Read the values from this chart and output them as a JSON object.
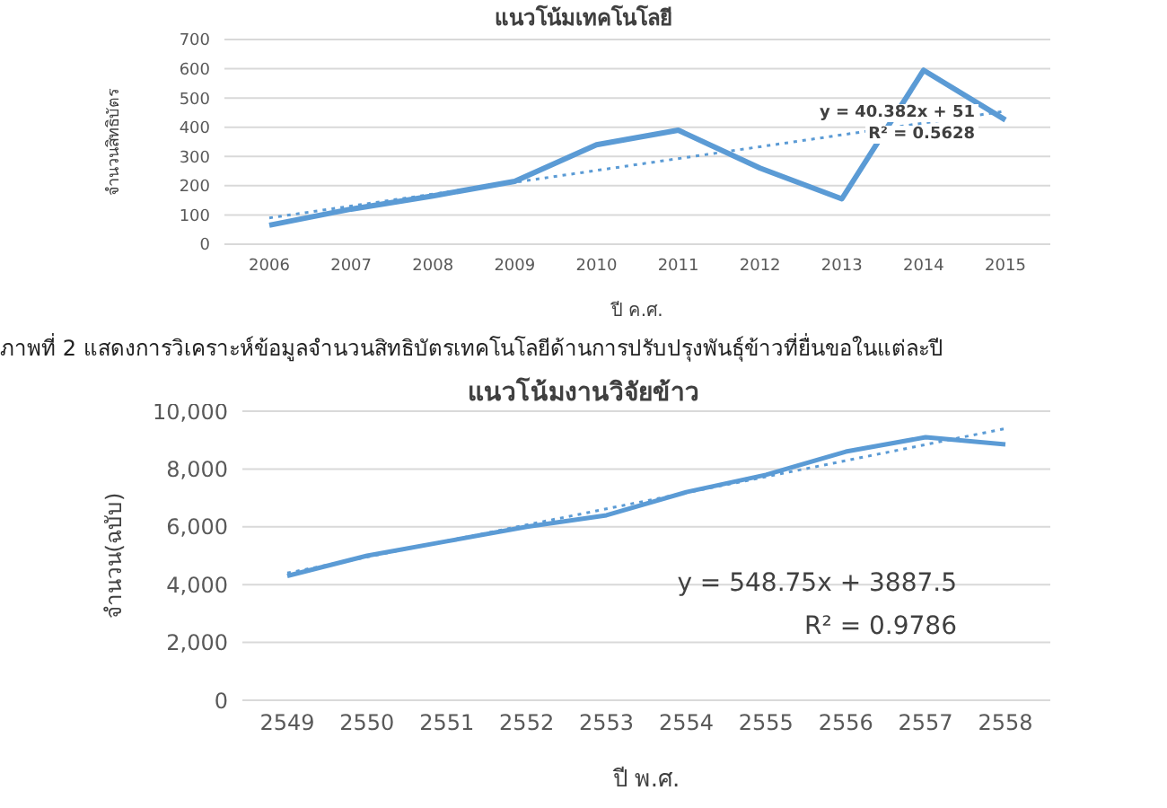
{
  "chart_data": [
    {
      "type": "line",
      "title": "แนวโน้มเทคโนโลยี",
      "xlabel": "ปี ค.ศ.",
      "ylabel": "จำนวนสิทธิบัตร",
      "categories": [
        "2006",
        "2007",
        "2008",
        "2009",
        "2010",
        "2011",
        "2012",
        "2013",
        "2014",
        "2015"
      ],
      "series": [
        {
          "color": "#5b9bd5",
          "values": [
            65,
            120,
            165,
            215,
            340,
            390,
            260,
            155,
            595,
            425
          ]
        },
        {
          "type": "line",
          "line_style": "dotted",
          "color": "#5b9bd5",
          "values": [
            90,
            null,
            null,
            null,
            null,
            null,
            null,
            null,
            null,
            455
          ]
        }
      ],
      "ylim": [
        0,
        700
      ],
      "yticks": [
        0,
        100,
        200,
        300,
        400,
        500,
        600,
        700
      ],
      "grid": "y",
      "marker": "none",
      "legend": false,
      "annotations": [
        "y = 40.382x + 51",
        "R² = 0.5628"
      ]
    },
    {
      "type": "other",
      "annotations": [
        "ภาพที่ 2 แสดงการวิเคราะห์ข้อมูลจำนวนสิทธิบัตรเทคโนโลยีด้านการปรับปรุงพันธุ์ข้าวที่ยื่นขอในแต่ละปี"
      ]
    },
    {
      "type": "line",
      "title": "แนวโน้มงานวิจัยข้าว",
      "xlabel": "ปี พ.ศ.",
      "ylabel": "จำนวน(ฉบับ)",
      "categories": [
        "2549",
        "2550",
        "2551",
        "2552",
        "2553",
        "2554",
        "2555",
        "2556",
        "2557",
        "2558"
      ],
      "series": [
        {
          "color": "#5b9bd5",
          "values": [
            4300,
            5000,
            5500,
            6000,
            6400,
            7200,
            7800,
            8600,
            9100,
            8850
          ]
        },
        {
          "type": "line",
          "line_style": "dotted",
          "color": "#5b9bd5",
          "values": [
            4400,
            null,
            null,
            null,
            null,
            null,
            null,
            null,
            null,
            9400
          ]
        }
      ],
      "ylim": [
        0,
        10000
      ],
      "yticks": [
        0,
        {
          "value": 2000,
          "label": "2,000"
        },
        {
          "value": 4000,
          "label": "4,000"
        },
        {
          "value": 6000,
          "label": "6,000"
        },
        {
          "value": 8000,
          "label": "8,000"
        },
        {
          "value": 10000,
          "label": "10,000"
        }
      ],
      "grid": "y",
      "marker": "none",
      "legend": false,
      "annotations": [
        "y = 548.75x + 3887.5",
        "R² = 0.9786"
      ]
    }
  ]
}
